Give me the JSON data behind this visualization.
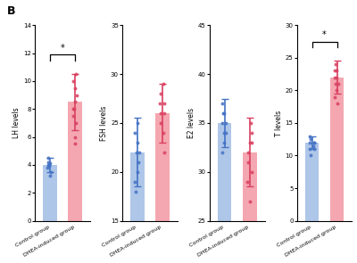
{
  "panel_B_label": "B",
  "charts": [
    {
      "ylabel": "LH levels",
      "ylim": [
        0,
        14
      ],
      "yticks": [
        0,
        2,
        4,
        6,
        8,
        10,
        12,
        14
      ],
      "control_bar": 4.0,
      "dhea_bar": 8.5,
      "control_err": 0.5,
      "dhea_err": 2.0,
      "control_dots": [
        3.2,
        3.5,
        3.8,
        4.0,
        4.2,
        4.5,
        4.0,
        3.9,
        4.1
      ],
      "dhea_dots": [
        5.5,
        6.0,
        7.0,
        8.0,
        9.0,
        10.0,
        10.5,
        9.5,
        8.5,
        8.0,
        7.5
      ],
      "significant": true
    },
    {
      "ylabel": "FSH levels",
      "ylim": [
        15,
        35
      ],
      "yticks": [
        15,
        20,
        25,
        30,
        35
      ],
      "control_bar": 22.0,
      "dhea_bar": 26.0,
      "control_err": 3.5,
      "dhea_err": 3.0,
      "control_dots": [
        18,
        19,
        20,
        21,
        22,
        23,
        24,
        25,
        22
      ],
      "dhea_dots": [
        22,
        24,
        25,
        26,
        27,
        28,
        29,
        27,
        26
      ],
      "significant": false
    },
    {
      "ylabel": "E2 levels",
      "ylim": [
        25,
        45
      ],
      "yticks": [
        25,
        30,
        35,
        40,
        45
      ],
      "control_bar": 35.0,
      "dhea_bar": 32.0,
      "control_err": 2.5,
      "dhea_err": 3.5,
      "control_dots": [
        32,
        33,
        34,
        35,
        36,
        37,
        36,
        35,
        34
      ],
      "dhea_dots": [
        27,
        29,
        30,
        31,
        32,
        33,
        34,
        35,
        33
      ],
      "significant": false
    },
    {
      "ylabel": "T levels",
      "ylim": [
        0,
        30
      ],
      "yticks": [
        0,
        5,
        10,
        15,
        20,
        25,
        30
      ],
      "control_bar": 12.0,
      "dhea_bar": 22.0,
      "control_err": 1.0,
      "dhea_err": 2.5,
      "control_dots": [
        10,
        11,
        11.5,
        12,
        12.5,
        13,
        12,
        11,
        12
      ],
      "dhea_dots": [
        18,
        19,
        20,
        21,
        22,
        23,
        24,
        23,
        22,
        21
      ],
      "significant": true
    }
  ],
  "bar_color_control": "#aec6e8",
  "bar_color_dhea": "#f4a7b0",
  "dot_color_control": "#4472c4",
  "dot_color_dhea": "#d94060",
  "error_color_control": "#4472c4",
  "error_color_dhea": "#d94060",
  "xlabel_control": "Control group",
  "xlabel_dhea": "DHEA-induced group",
  "significance_label": "*"
}
